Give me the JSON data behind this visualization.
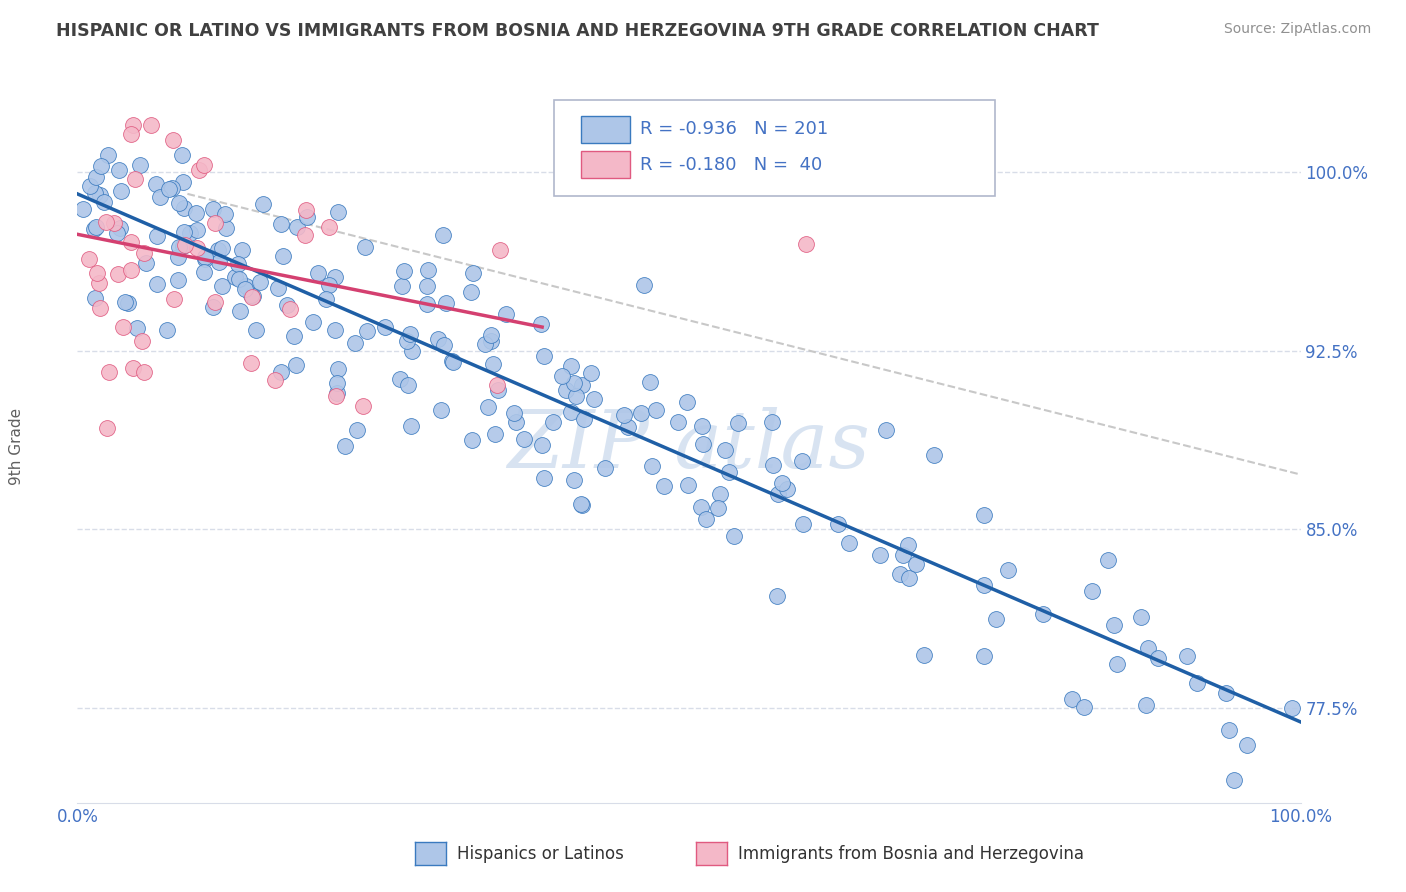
{
  "title": "HISPANIC OR LATINO VS IMMIGRANTS FROM BOSNIA AND HERZEGOVINA 9TH GRADE CORRELATION CHART",
  "source": "Source: ZipAtlas.com",
  "ylabel": "9th Grade",
  "ytick_labels": [
    "77.5%",
    "85.0%",
    "92.5%",
    "100.0%"
  ],
  "ytick_values": [
    0.775,
    0.85,
    0.925,
    1.0
  ],
  "xlim": [
    0.0,
    1.0
  ],
  "ylim": [
    0.735,
    1.035
  ],
  "legend_blue_r": "-0.936",
  "legend_blue_n": "201",
  "legend_pink_r": "-0.180",
  "legend_pink_n": " 40",
  "blue_fill_color": "#aec6e8",
  "blue_edge_color": "#3a7abf",
  "pink_fill_color": "#f4b8c8",
  "pink_edge_color": "#e05a80",
  "blue_line_color": "#1f5fa6",
  "pink_line_color": "#d44070",
  "dashed_line_color": "#c8c8c8",
  "title_color": "#404040",
  "axis_label_color": "#4472c4",
  "grid_color": "#d8dde8",
  "ylabel_color": "#606060",
  "watermark_color": "#c8d8ec",
  "background_color": "#ffffff",
  "legend_edge_color": "#b0b8cc",
  "blue_line_start_x": 0.0,
  "blue_line_start_y": 0.991,
  "blue_line_end_x": 1.0,
  "blue_line_end_y": 0.769,
  "pink_line_start_x": 0.0,
  "pink_line_start_y": 0.974,
  "pink_line_end_x": 0.38,
  "pink_line_end_y": 0.935,
  "dashed_line_start_x": 0.09,
  "dashed_line_start_y": 0.991,
  "dashed_line_end_x": 1.0,
  "dashed_line_end_y": 0.873
}
